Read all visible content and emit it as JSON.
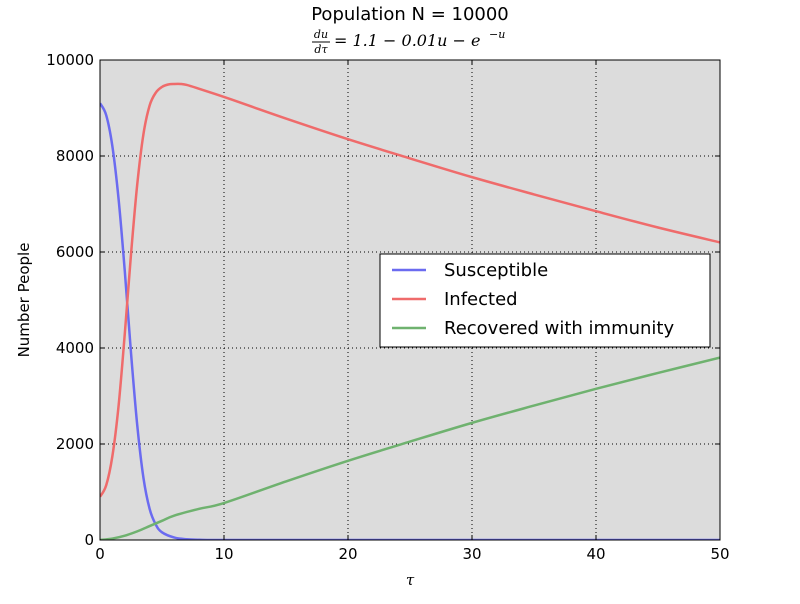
{
  "chart_data": {
    "type": "line",
    "title": "Population N = 10000",
    "subtitle": {
      "frac_num": "du",
      "frac_den": "dτ",
      "rhs": "= 1.1 − 0.01u − e",
      "exponent": "−u"
    },
    "xlabel": "τ",
    "ylabel": "Number People",
    "xlim": [
      0,
      50
    ],
    "ylim": [
      0,
      10000
    ],
    "x_ticks": [
      0,
      10,
      20,
      30,
      40,
      50
    ],
    "y_ticks": [
      0,
      2000,
      4000,
      6000,
      8000,
      10000
    ],
    "grid": true,
    "grid_style": "dotted",
    "plot_background": "#dcdcdc",
    "legend_position": "center-right",
    "series": [
      {
        "name": "Susceptible",
        "color": "#6b6bf0",
        "points": [
          [
            0,
            9100
          ],
          [
            0.5,
            8850
          ],
          [
            1,
            8200
          ],
          [
            1.5,
            7100
          ],
          [
            2,
            5600
          ],
          [
            2.5,
            3900
          ],
          [
            3,
            2400
          ],
          [
            3.5,
            1300
          ],
          [
            4,
            650
          ],
          [
            4.5,
            320
          ],
          [
            5,
            160
          ],
          [
            6,
            50
          ],
          [
            7,
            15
          ],
          [
            8,
            5
          ],
          [
            10,
            0
          ],
          [
            20,
            0
          ],
          [
            30,
            0
          ],
          [
            40,
            0
          ],
          [
            50,
            0
          ]
        ]
      },
      {
        "name": "Infected",
        "color": "#ef6b6b",
        "points": [
          [
            0,
            900
          ],
          [
            0.5,
            1140
          ],
          [
            1,
            1750
          ],
          [
            1.5,
            2800
          ],
          [
            2,
            4300
          ],
          [
            2.5,
            5950
          ],
          [
            3,
            7400
          ],
          [
            3.5,
            8450
          ],
          [
            4,
            9050
          ],
          [
            4.5,
            9320
          ],
          [
            5,
            9440
          ],
          [
            5.5,
            9490
          ],
          [
            6,
            9500
          ],
          [
            6.5,
            9500
          ],
          [
            7,
            9480
          ],
          [
            8,
            9400
          ],
          [
            10,
            9230
          ],
          [
            12,
            9050
          ],
          [
            15,
            8780
          ],
          [
            20,
            8350
          ],
          [
            25,
            7950
          ],
          [
            30,
            7560
          ],
          [
            35,
            7200
          ],
          [
            40,
            6850
          ],
          [
            45,
            6510
          ],
          [
            50,
            6200
          ]
        ]
      },
      {
        "name": "Recovered with immunity",
        "color": "#6fb26f",
        "points": [
          [
            0,
            0
          ],
          [
            1,
            30
          ],
          [
            2,
            90
          ],
          [
            3,
            180
          ],
          [
            4,
            290
          ],
          [
            5,
            400
          ],
          [
            6,
            510
          ],
          [
            8,
            650
          ],
          [
            10,
            770
          ],
          [
            15,
            1220
          ],
          [
            20,
            1650
          ],
          [
            25,
            2050
          ],
          [
            30,
            2440
          ],
          [
            35,
            2800
          ],
          [
            40,
            3150
          ],
          [
            45,
            3480
          ],
          [
            50,
            3800
          ]
        ]
      }
    ]
  }
}
